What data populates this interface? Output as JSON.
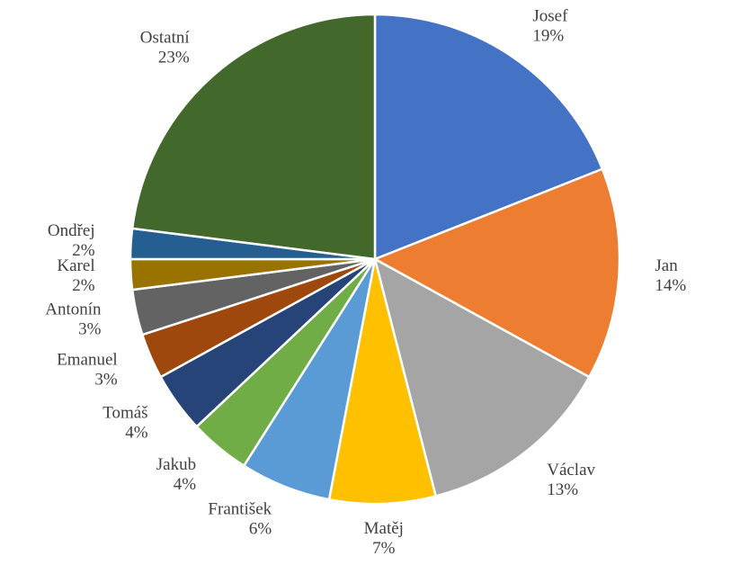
{
  "chart_data": {
    "type": "pie",
    "categories": [
      "Josef",
      "Jan",
      "Václav",
      "Matěj",
      "František",
      "Jakub",
      "Tomáš",
      "Emanuel",
      "Antonín",
      "Karel",
      "Ondřej",
      "Ostatní"
    ],
    "values": [
      19,
      14,
      13,
      7,
      6,
      4,
      4,
      3,
      3,
      2,
      2,
      23
    ],
    "value_labels": [
      "19%",
      "14%",
      "13%",
      "7%",
      "6%",
      "4%",
      "4%",
      "3%",
      "3%",
      "2%",
      "2%",
      "23%"
    ],
    "colors": [
      "#4472c4",
      "#ed7d31",
      "#a5a5a5",
      "#ffc000",
      "#5b9bd5",
      "#70ad47",
      "#264478",
      "#9e480e",
      "#636363",
      "#997300",
      "#255e91",
      "#43682b"
    ]
  }
}
